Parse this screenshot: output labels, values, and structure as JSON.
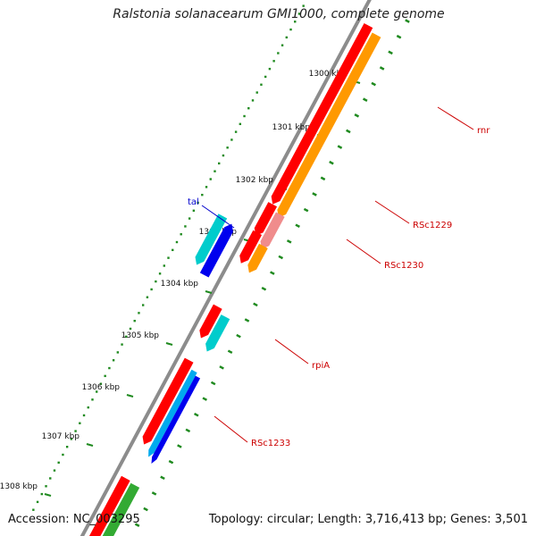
{
  "title": "Ralstonia solanacearum GMI1000, complete genome",
  "footer": {
    "accession": "Accession: NC_003295",
    "stats": "Topology: circular; Length: 3,716,413 bp; Genes: 3,501"
  },
  "colors": {
    "backbone": "#8c8c8c",
    "tick": "#1f8a1f",
    "label_text": "#111111",
    "gene_label_red": "#cc0000",
    "gene_label_blue": "#0000cc",
    "callout_red": "#cc0000",
    "callout_blue": "#0000cc"
  },
  "ruler": {
    "unit": "kbp",
    "ticks": [
      {
        "label": "1300 kbp"
      },
      {
        "label": "1301 kbp"
      },
      {
        "label": "1302 kbp"
      },
      {
        "label": "1303 kbp"
      },
      {
        "label": "1304 kbp"
      },
      {
        "label": "1305 kbp"
      },
      {
        "label": "1306 kbp"
      },
      {
        "label": "1307 kbp"
      },
      {
        "label": "1308 kbp"
      }
    ]
  },
  "features": [
    {
      "name": "rnr",
      "color": "#ff0000",
      "track": "inner1"
    },
    {
      "name": "rnr",
      "color": "#ff9900",
      "track": "inner2"
    },
    {
      "name": "gene",
      "color": "#ff0000",
      "track": "inner1"
    },
    {
      "name": "RSc1229",
      "color": "#f08c8c",
      "track": "inner2"
    },
    {
      "name": "gene",
      "color": "#ff0000",
      "track": "inner1"
    },
    {
      "name": "RSc1230",
      "color": "#ff9900",
      "track": "inner2"
    },
    {
      "name": "tal",
      "color": "#00cccc",
      "track": "outer2"
    },
    {
      "name": "tal",
      "color": "#0000ee",
      "track": "outer1"
    },
    {
      "name": "rpiA",
      "color": "#ff0000",
      "track": "inner1"
    },
    {
      "name": "rpiA",
      "color": "#00cccc",
      "track": "inner2"
    },
    {
      "name": "RSc1233",
      "color": "#ff0000",
      "track": "inner1"
    },
    {
      "name": "RSc1233",
      "color": "#00aaee",
      "track": "inner2"
    },
    {
      "name": "RSc1233",
      "color": "#0000ee",
      "track": "inner3"
    },
    {
      "name": "gene",
      "color": "#ff0000",
      "track": "inner1"
    },
    {
      "name": "gene",
      "color": "#33aa33",
      "track": "inner2"
    }
  ],
  "gene_labels": [
    {
      "text": "rnr",
      "color": "#cc0000"
    },
    {
      "text": "RSc1229",
      "color": "#cc0000"
    },
    {
      "text": "RSc1230",
      "color": "#cc0000"
    },
    {
      "text": "tal",
      "color": "#0000cc"
    },
    {
      "text": "rpiA",
      "color": "#cc0000"
    },
    {
      "text": "RSc1233",
      "color": "#cc0000"
    }
  ]
}
